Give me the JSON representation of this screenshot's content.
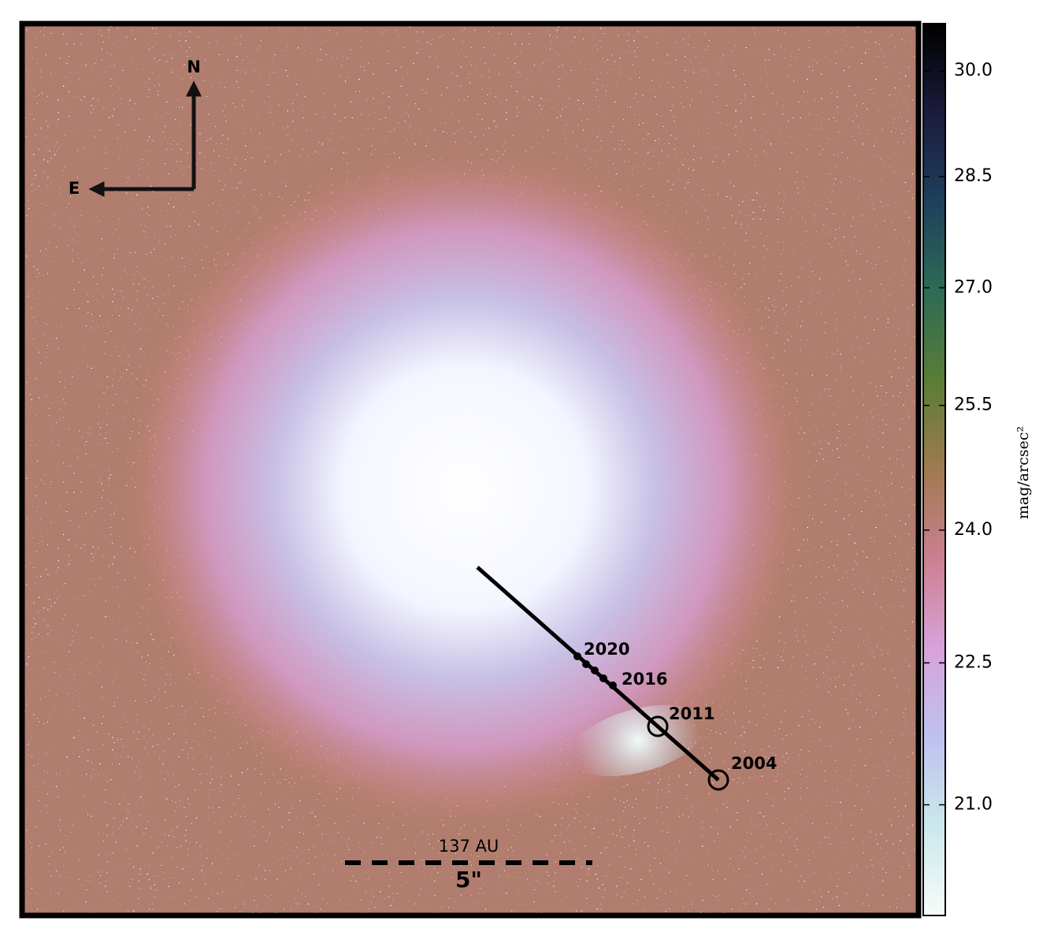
{
  "chart_data": {
    "type": "image",
    "colorbar": {
      "label": "mag/arcsec²",
      "lim": [
        19.9,
        30.7
      ],
      "log": true,
      "ticks": [
        {
          "value": 21,
          "label": "21.0"
        },
        {
          "value": 22.5,
          "label": "22.5"
        },
        {
          "value": 24,
          "label": "24.0"
        },
        {
          "value": 25.5,
          "label": "25.5"
        },
        {
          "value": 27,
          "label": "27.0"
        },
        {
          "value": 28.5,
          "label": "28.5"
        },
        {
          "value": 30,
          "label": "30.0"
        }
      ],
      "colormap": [
        "#f6fcf8",
        "#cbe8ec",
        "#bec2ee",
        "#d7a2d9",
        "#cc7f90",
        "#a07a50",
        "#5a7d36",
        "#2d6b56",
        "#1e405c",
        "#1b1b3c",
        "#000000"
      ]
    },
    "compass": {
      "north": "N",
      "east": "E"
    },
    "epochs": [
      "2020",
      "2016",
      "2011",
      "2004"
    ],
    "scale_bar": {
      "physical": "137 AU",
      "angular": "5\""
    }
  }
}
